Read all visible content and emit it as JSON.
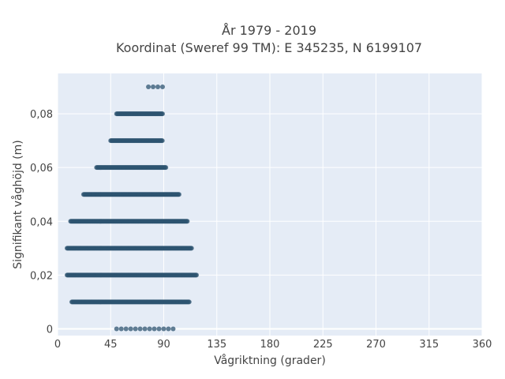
{
  "chart_data": {
    "type": "scatter",
    "title_line1": "År 1979 - 2019",
    "title_line2": "Koordinat (Sweref 99 TM): E 345235, N 6199107",
    "xlabel": "Vågriktning (grader)",
    "ylabel": "Signifikant våghöjd (m)",
    "xlim": [
      0,
      360
    ],
    "ylim": [
      -0.0025,
      0.095
    ],
    "xticks": [
      0,
      45,
      90,
      135,
      180,
      225,
      270,
      315,
      360
    ],
    "xtick_labels": [
      "0",
      "45",
      "90",
      "135",
      "180",
      "225",
      "270",
      "315",
      "360"
    ],
    "yticks": [
      0,
      0.02,
      0.04,
      0.06,
      0.08
    ],
    "ytick_labels": [
      "0",
      "0,02",
      "0,04",
      "0,06",
      "0,08"
    ],
    "grid": true,
    "marker_color": "#2e5470",
    "background": "#e5ecf6",
    "rows": [
      {
        "y": 0.0,
        "x_min": 50,
        "x_max": 98,
        "sparse": true
      },
      {
        "y": 0.01,
        "x_min": 12,
        "x_max": 112,
        "sparse": false
      },
      {
        "y": 0.02,
        "x_min": 8,
        "x_max": 118,
        "sparse": false
      },
      {
        "y": 0.03,
        "x_min": 8,
        "x_max": 114,
        "sparse": false
      },
      {
        "y": 0.04,
        "x_min": 11,
        "x_max": 110,
        "sparse": false
      },
      {
        "y": 0.05,
        "x_min": 22,
        "x_max": 103,
        "sparse": false
      },
      {
        "y": 0.06,
        "x_min": 33,
        "x_max": 92,
        "sparse": false
      },
      {
        "y": 0.07,
        "x_min": 45,
        "x_max": 89,
        "sparse": false
      },
      {
        "y": 0.08,
        "x_min": 50,
        "x_max": 89,
        "sparse": false
      },
      {
        "y": 0.09,
        "x_min": 77,
        "x_max": 89,
        "sparse": true
      }
    ]
  }
}
